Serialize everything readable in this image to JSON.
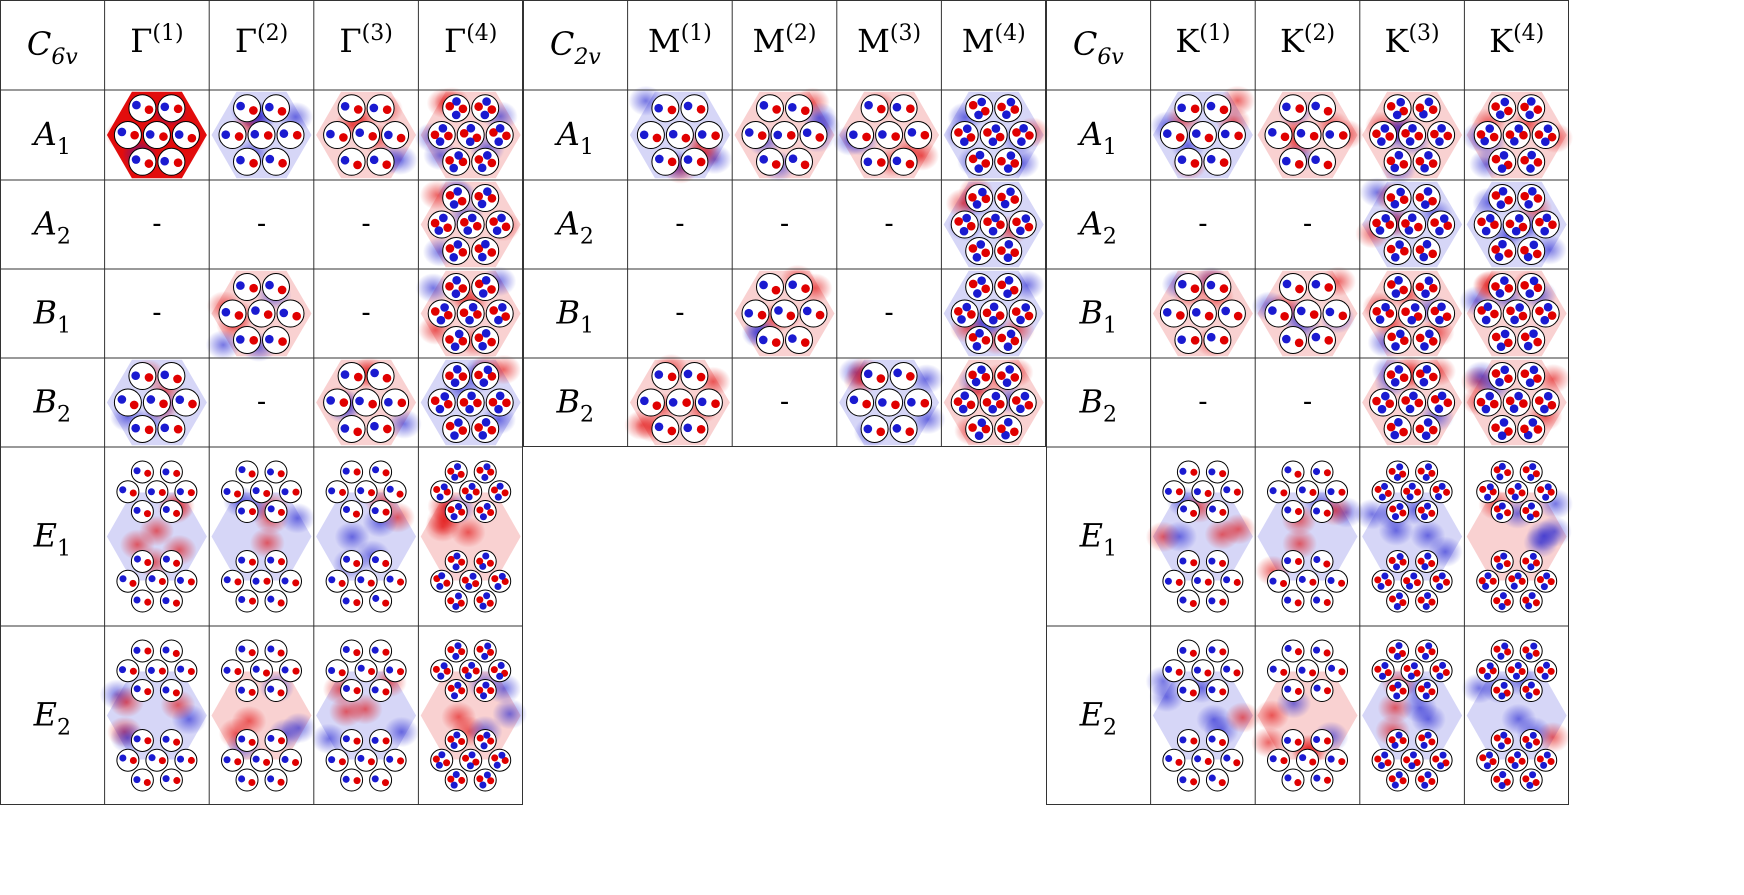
{
  "table": {
    "groups": [
      {
        "corner": {
          "base": "C",
          "sub": "6v"
        },
        "columns": [
          {
            "base": "Γ",
            "sup": "(1)"
          },
          {
            "base": "Γ",
            "sup": "(2)"
          },
          {
            "base": "Γ",
            "sup": "(3)"
          },
          {
            "base": "Γ",
            "sup": "(4)"
          }
        ],
        "rows": [
          {
            "base": "A",
            "sub": "1"
          },
          {
            "base": "A",
            "sub": "2"
          },
          {
            "base": "B",
            "sub": "1"
          },
          {
            "base": "B",
            "sub": "2"
          },
          {
            "base": "E",
            "sub": "1"
          },
          {
            "base": "E",
            "sub": "2"
          }
        ],
        "cells": [
          [
            "mode",
            "mode",
            "mode",
            "mode"
          ],
          [
            "-",
            "-",
            "-",
            "mode"
          ],
          [
            "-",
            "mode",
            "-",
            "mode"
          ],
          [
            "mode",
            "-",
            "mode",
            "mode"
          ],
          [
            "mode",
            "mode",
            "mode",
            "mode"
          ],
          [
            "mode",
            "mode",
            "mode",
            "mode"
          ]
        ]
      },
      {
        "corner": {
          "base": "C",
          "sub": "2v"
        },
        "columns": [
          {
            "base": "M",
            "sup": "(1)"
          },
          {
            "base": "M",
            "sup": "(2)"
          },
          {
            "base": "M",
            "sup": "(3)"
          },
          {
            "base": "M",
            "sup": "(4)"
          }
        ],
        "rows": [
          {
            "base": "A",
            "sub": "1"
          },
          {
            "base": "A",
            "sub": "2"
          },
          {
            "base": "B",
            "sub": "1"
          },
          {
            "base": "B",
            "sub": "2"
          }
        ],
        "cells": [
          [
            "mode",
            "mode",
            "mode",
            "mode"
          ],
          [
            "-",
            "-",
            "-",
            "mode"
          ],
          [
            "-",
            "mode",
            "-",
            "mode"
          ],
          [
            "mode",
            "-",
            "mode",
            "mode"
          ]
        ]
      },
      {
        "corner": {
          "base": "C",
          "sub": "6v"
        },
        "columns": [
          {
            "base": "K",
            "sup": "(1)"
          },
          {
            "base": "K",
            "sup": "(2)"
          },
          {
            "base": "K",
            "sup": "(3)"
          },
          {
            "base": "K",
            "sup": "(4)"
          }
        ],
        "rows": [
          {
            "base": "A",
            "sub": "1"
          },
          {
            "base": "A",
            "sub": "2"
          },
          {
            "base": "B",
            "sub": "1"
          },
          {
            "base": "B",
            "sub": "2"
          },
          {
            "base": "E",
            "sub": "1"
          },
          {
            "base": "E",
            "sub": "2"
          }
        ],
        "cells": [
          [
            "mode",
            "mode",
            "mode",
            "mode"
          ],
          [
            "-",
            "-",
            "mode",
            "mode"
          ],
          [
            "mode",
            "mode",
            "mode",
            "mode"
          ],
          [
            "-",
            "-",
            "mode",
            "mode"
          ],
          [
            "mode",
            "mode",
            "mode",
            "mode"
          ],
          [
            "mode",
            "mode",
            "mode",
            "mode"
          ]
        ]
      }
    ],
    "colors": {
      "positive": "#e00000",
      "negative": "#1a1ad0",
      "grid": "#333333",
      "circle": "#000000"
    }
  }
}
